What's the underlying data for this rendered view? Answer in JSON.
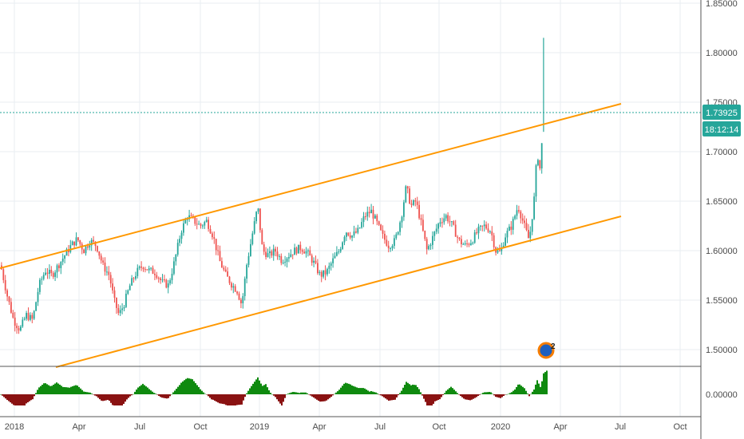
{
  "chart_data": {
    "type": "candlestick",
    "x_ticks": [
      "2018",
      "Apr",
      "Jul",
      "Oct",
      "2019",
      "Apr",
      "Jul",
      "Oct",
      "2020",
      "Apr",
      "Jul",
      "Oct"
    ],
    "price_ticks": [
      "1.85000",
      "1.80000",
      "1.75000",
      "1.70000",
      "1.65000",
      "1.60000",
      "1.55000",
      "1.50000"
    ],
    "indicator_ticks": [
      "0.00000"
    ],
    "price_ylim": [
      1.48,
      1.85
    ],
    "last_price": "1.73925",
    "countdown": "18:12:14",
    "event_badge": {
      "count": "2"
    },
    "price_path": [
      [
        0,
        1.585
      ],
      [
        8,
        1.555
      ],
      [
        16,
        1.53
      ],
      [
        24,
        1.52
      ],
      [
        32,
        1.535
      ],
      [
        40,
        1.53
      ],
      [
        48,
        1.565
      ],
      [
        56,
        1.58
      ],
      [
        64,
        1.575
      ],
      [
        72,
        1.585
      ],
      [
        80,
        1.595
      ],
      [
        88,
        1.605
      ],
      [
        96,
        1.612
      ],
      [
        104,
        1.6
      ],
      [
        112,
        1.61
      ],
      [
        120,
        1.605
      ],
      [
        128,
        1.585
      ],
      [
        136,
        1.575
      ],
      [
        142,
        1.55
      ],
      [
        148,
        1.535
      ],
      [
        154,
        1.545
      ],
      [
        162,
        1.565
      ],
      [
        170,
        1.578
      ],
      [
        178,
        1.585
      ],
      [
        186,
        1.58
      ],
      [
        194,
        1.578
      ],
      [
        202,
        1.568
      ],
      [
        210,
        1.565
      ],
      [
        218,
        1.59
      ],
      [
        226,
        1.62
      ],
      [
        234,
        1.635
      ],
      [
        242,
        1.63
      ],
      [
        250,
        1.625
      ],
      [
        258,
        1.63
      ],
      [
        266,
        1.615
      ],
      [
        274,
        1.59
      ],
      [
        282,
        1.575
      ],
      [
        290,
        1.565
      ],
      [
        296,
        1.56
      ],
      [
        302,
        1.545
      ],
      [
        308,
        1.585
      ],
      [
        316,
        1.62
      ],
      [
        322,
        1.645
      ],
      [
        328,
        1.6
      ],
      [
        336,
        1.595
      ],
      [
        344,
        1.6
      ],
      [
        352,
        1.59
      ],
      [
        360,
        1.595
      ],
      [
        368,
        1.6
      ],
      [
        376,
        1.603
      ],
      [
        384,
        1.598
      ],
      [
        392,
        1.588
      ],
      [
        400,
        1.575
      ],
      [
        408,
        1.578
      ],
      [
        416,
        1.59
      ],
      [
        424,
        1.6
      ],
      [
        432,
        1.62
      ],
      [
        440,
        1.615
      ],
      [
        448,
        1.62
      ],
      [
        456,
        1.635
      ],
      [
        464,
        1.64
      ],
      [
        470,
        1.63
      ],
      [
        478,
        1.615
      ],
      [
        486,
        1.605
      ],
      [
        494,
        1.61
      ],
      [
        502,
        1.635
      ],
      [
        508,
        1.665
      ],
      [
        514,
        1.645
      ],
      [
        520,
        1.65
      ],
      [
        526,
        1.63
      ],
      [
        534,
        1.6
      ],
      [
        542,
        1.615
      ],
      [
        550,
        1.63
      ],
      [
        558,
        1.635
      ],
      [
        566,
        1.625
      ],
      [
        574,
        1.61
      ],
      [
        582,
        1.605
      ],
      [
        590,
        1.61
      ],
      [
        598,
        1.62
      ],
      [
        606,
        1.625
      ],
      [
        614,
        1.62
      ],
      [
        620,
        1.6
      ],
      [
        626,
        1.598
      ],
      [
        632,
        1.615
      ],
      [
        640,
        1.625
      ],
      [
        648,
        1.645
      ],
      [
        656,
        1.625
      ],
      [
        662,
        1.61
      ],
      [
        668,
        1.65
      ],
      [
        672,
        1.7
      ],
      [
        676,
        1.68
      ],
      [
        680,
        1.74
      ]
    ],
    "spike": {
      "x": 680,
      "low": 1.72,
      "high": 1.815,
      "close": 1.74
    },
    "indicator_colors": {
      "positive": "#0f8a0f",
      "negative": "#8a1212"
    },
    "colors": {
      "up": "#26a69a",
      "down": "#ef5350",
      "channel": "#ff9800",
      "price_label_bg": "#26a69a",
      "grid": "#e9eef2",
      "axis_text": "#4a4a4a"
    }
  }
}
